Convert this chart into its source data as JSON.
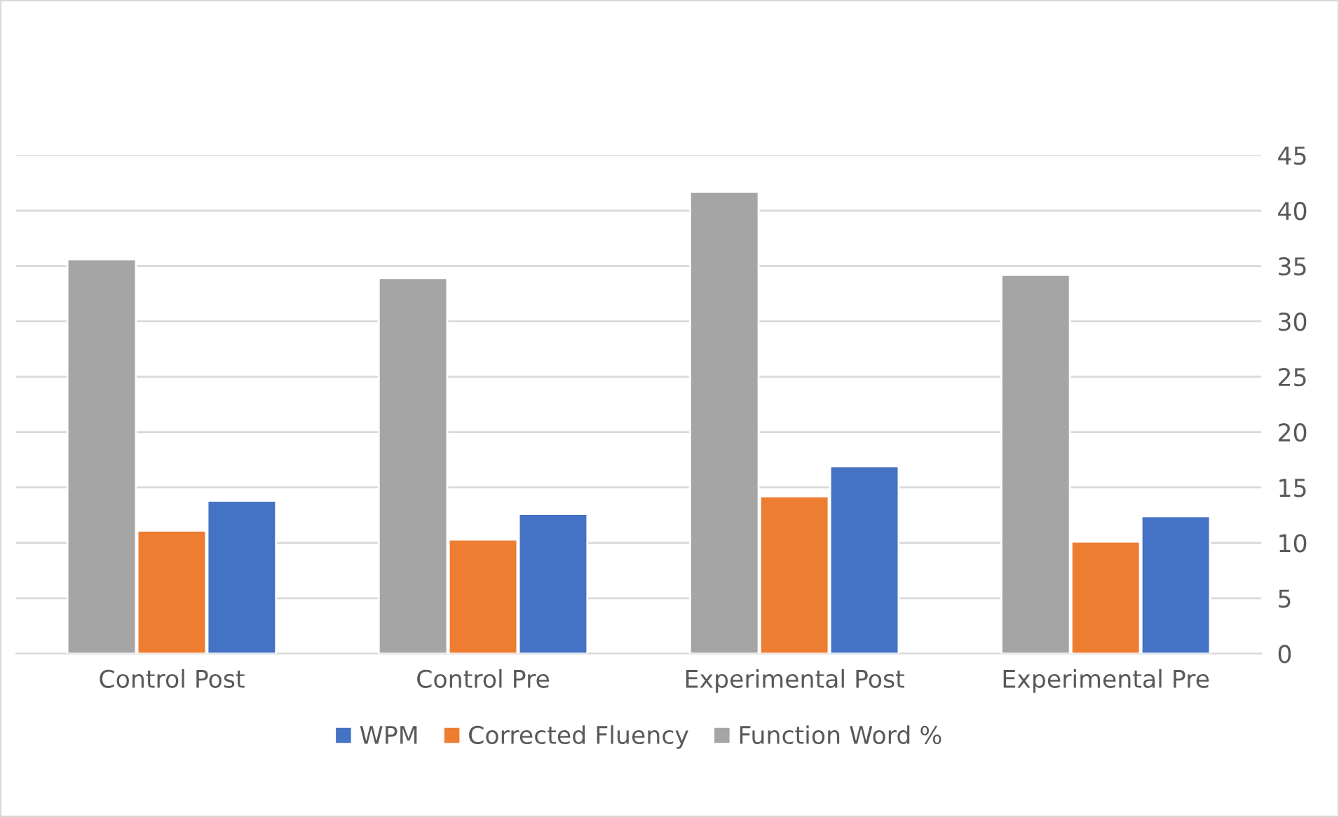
{
  "chart_data": {
    "type": "bar",
    "categories": [
      "Control Post",
      "Control Pre",
      "Experimental Post",
      "Experimental Pre"
    ],
    "series": [
      {
        "name": "Function Word %",
        "color": "#a5a5a5",
        "values": [
          35.6,
          33.9,
          41.7,
          34.2
        ]
      },
      {
        "name": "Corrected Fluency",
        "color": "#ed7d31",
        "values": [
          11.1,
          10.3,
          14.2,
          10.1
        ]
      },
      {
        "name": "WPM",
        "color": "#4472c4",
        "values": [
          13.8,
          12.6,
          16.9,
          12.4
        ]
      }
    ],
    "ylim": [
      0,
      45
    ],
    "yticks": [
      0,
      5,
      10,
      15,
      20,
      25,
      30,
      35,
      40,
      45
    ],
    "grid": "y",
    "legend": "bottom"
  }
}
